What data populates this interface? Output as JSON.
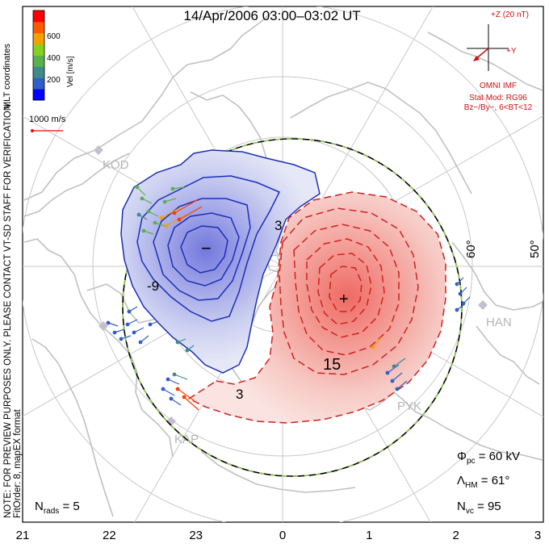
{
  "title": "14/Apr/2006 03:00–03:02 UT",
  "colorbar": {
    "title": "Vel [m/s]",
    "ticks": [
      "600",
      "400",
      "200"
    ],
    "colors": [
      "#0000ff",
      "#2f5fc8",
      "#3e8b8b",
      "#59b14e",
      "#88d020",
      "#f5a000",
      "#ff5a00",
      "#ff0000"
    ]
  },
  "mlt_coords_label": "MLT coordinates",
  "preview_note": "NOTE: FOR PREVIEW PURPOSES ONLY. PLEASE CONTACT VT-SD STAFF FOR VERIFICATION.",
  "fit_note": "FitOrder: 8, mapEX format",
  "ref_vector_label": "1000 m/s",
  "imf": {
    "z_label": "+Z (20 nT)",
    "y_label": "+Y",
    "source": "OMNI IMF",
    "stat_mod": "Stat Mod: RG96",
    "condition": "Bz−/By−, 6<BT<12"
  },
  "lat_labels": [
    "60°",
    "50°"
  ],
  "contour_labels": [
    "3",
    "-9",
    "15",
    "3"
  ],
  "extrema": {
    "min": "−",
    "max": "+"
  },
  "stations": [
    "KOD",
    "HAN",
    "PYK",
    "KAP"
  ],
  "stats": {
    "phi_pc": {
      "symbol": "Φ",
      "sub": "pc",
      "value": " = 60 kV"
    },
    "lambda_hm": {
      "symbol": "Λ",
      "sub": "HM",
      "value": " = 61°"
    },
    "n_vc": {
      "symbol": "N",
      "sub": "vc",
      "value": " = 95"
    },
    "n_rads": {
      "symbol": "N",
      "sub": "rads",
      "value": " = 5"
    }
  },
  "mlt_axis": [
    "21",
    "22",
    "23",
    "0",
    "1",
    "2",
    "3"
  ],
  "colors": {
    "negative_fill": "#d9dcf3",
    "positive_fill": "#f4d2cf",
    "negative_line": "#1b2fb5",
    "positive_line": "#d02020",
    "grid": "#c8c8c8",
    "coast": "#c0c0c0"
  }
}
